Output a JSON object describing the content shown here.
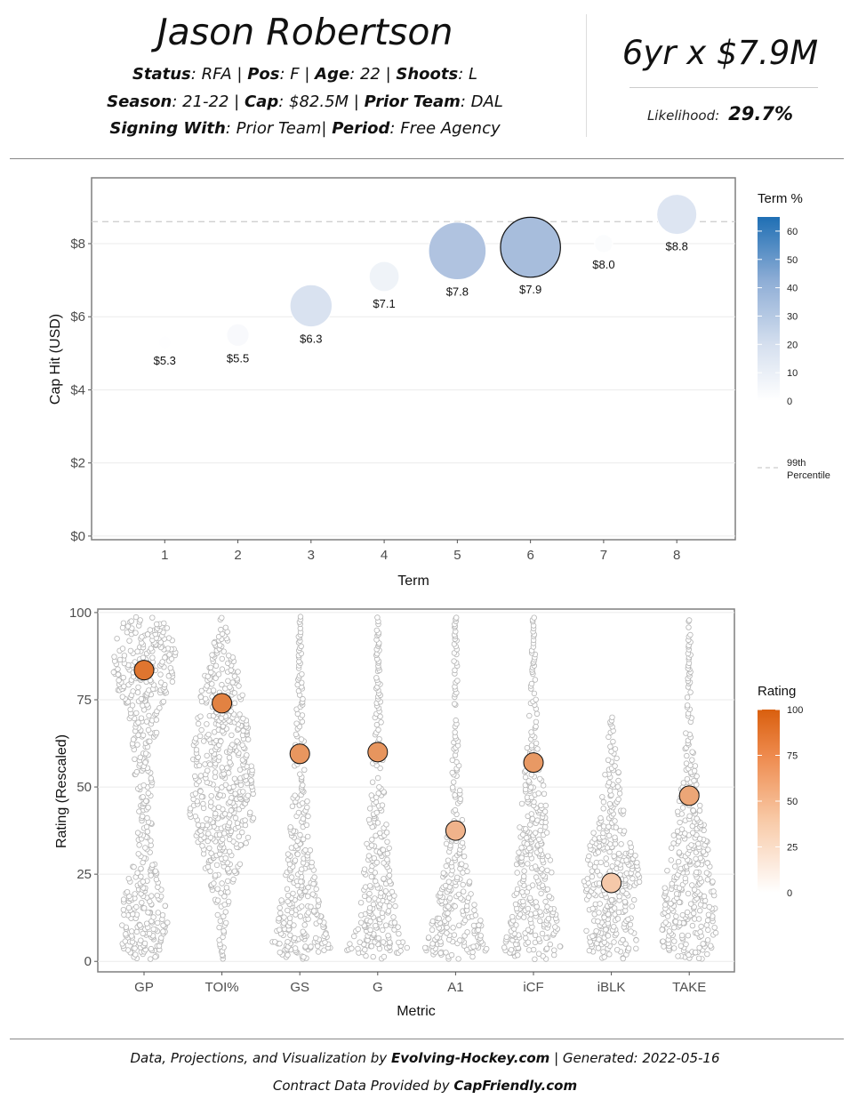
{
  "header": {
    "player_name": "Jason Robertson",
    "status_label": "Status",
    "status": "RFA",
    "pos_label": "Pos",
    "pos": "F",
    "age_label": "Age",
    "age": "22",
    "shoots_label": "Shoots",
    "shoots": "L",
    "season_label": "Season",
    "season": "21-22",
    "cap_label": "Cap",
    "cap": "$82.5M",
    "prior_team_label": "Prior Team",
    "prior_team": "DAL",
    "signing_with_label": "Signing With",
    "signing_with": "Prior Team",
    "period_label": "Period",
    "period": "Free Agency",
    "contract": "6yr x $7.9M",
    "likelihood_label": "Likelihood:",
    "likelihood": "29.7%"
  },
  "colors": {
    "term_high": "#1f6fb4",
    "term_low": "#ffffff",
    "rating_high": "#d95f0e",
    "rating_low": "#ffffff",
    "dot_stroke": "#b5b5b5"
  },
  "chart_data": [
    {
      "type": "scatter",
      "xlabel": "Term",
      "ylabel": "Cap Hit (USD)",
      "x_ticks": [
        "1",
        "2",
        "3",
        "4",
        "5",
        "6",
        "7",
        "8"
      ],
      "y_ticks": [
        "$0",
        "$2",
        "$4",
        "$6",
        "$8"
      ],
      "xlim": [
        0,
        8.8
      ],
      "ylim": [
        -0.1,
        9.8
      ],
      "reference_line": {
        "value": 8.6,
        "legend_label": "99th Percentile"
      },
      "legend_title": "Term %",
      "legend_ticks": [
        "60",
        "50",
        "40",
        "30",
        "20",
        "10",
        "0"
      ],
      "legend_max": 65,
      "selected_term": 6,
      "points": [
        {
          "term": 1,
          "cap_hit": 5.3,
          "label": "$5.3",
          "term_pct": 0.3
        },
        {
          "term": 2,
          "cap_hit": 5.5,
          "label": "$5.5",
          "term_pct": 2.5
        },
        {
          "term": 3,
          "cap_hit": 6.3,
          "label": "$6.3",
          "term_pct": 13
        },
        {
          "term": 4,
          "cap_hit": 7.1,
          "label": "$7.1",
          "term_pct": 5.6
        },
        {
          "term": 5,
          "cap_hit": 7.8,
          "label": "$7.8",
          "term_pct": 27
        },
        {
          "term": 6,
          "cap_hit": 7.9,
          "label": "$7.9",
          "term_pct": 29.7
        },
        {
          "term": 7,
          "cap_hit": 8.0,
          "label": "$8.0",
          "term_pct": 1.3
        },
        {
          "term": 8,
          "cap_hit": 8.8,
          "label": "$8.8",
          "term_pct": 11.5
        }
      ]
    },
    {
      "type": "scatter",
      "xlabel": "Metric",
      "ylabel": "Rating (Rescaled)",
      "categories": [
        "GP",
        "TOI%",
        "GS",
        "G",
        "A1",
        "iCF",
        "iBLK",
        "TAKE"
      ],
      "y_ticks": [
        "0",
        "25",
        "50",
        "75",
        "100"
      ],
      "ylim": [
        -3,
        101
      ],
      "legend_title": "Rating",
      "legend_ticks": [
        "100",
        "75",
        "50",
        "25",
        "0"
      ],
      "player_ratings": [
        83.5,
        74,
        59.5,
        60,
        37.5,
        57,
        22.5,
        47.5
      ]
    }
  ],
  "footer": {
    "line1_prefix": "Data, Projections, and Visualization by",
    "line1_source": "Evolving-Hockey.com",
    "line1_sep": "|",
    "line1_generated": "Generated: 2022-05-16",
    "line2_prefix": "Contract Data Provided by",
    "line2_source": "CapFriendly.com"
  }
}
